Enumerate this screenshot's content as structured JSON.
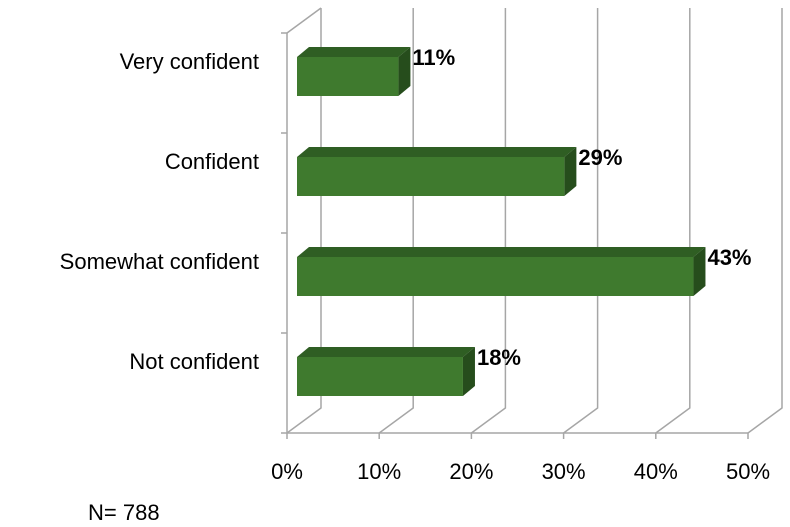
{
  "chart_data": {
    "type": "bar3d_horizontal",
    "categories": [
      "Very confident",
      "Confident",
      "Somewhat confident",
      "Not confident"
    ],
    "values": [
      11,
      29,
      43,
      18
    ],
    "value_labels": [
      "11%",
      "29%",
      "43%",
      "18%"
    ],
    "color": "#3f7a2e",
    "xlim": [
      0,
      50
    ],
    "xticks": [
      {
        "value": 0,
        "label": "0%"
      },
      {
        "value": 10,
        "label": "10%"
      },
      {
        "value": 20,
        "label": "20%"
      },
      {
        "value": 30,
        "label": "30%"
      },
      {
        "value": 40,
        "label": "40%"
      },
      {
        "value": 50,
        "label": "50%"
      }
    ],
    "grid": true,
    "note": "N= 788"
  }
}
